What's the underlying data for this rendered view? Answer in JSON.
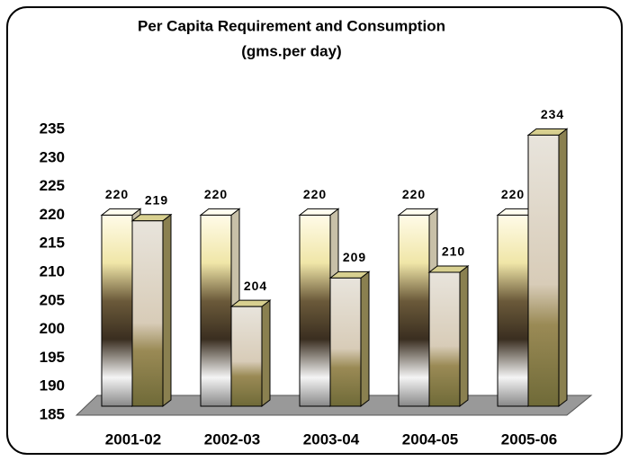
{
  "chart_data": {
    "type": "bar3d",
    "title": "Per Capita Requirement and Consumption",
    "subtitle": "(gms.per day)",
    "categories": [
      "2001-02",
      "2002-03",
      "2003-04",
      "2004-05",
      "2005-06"
    ],
    "series": [
      {
        "color": "#f4ecc0",
        "values": [
          220,
          220,
          220,
          220,
          220
        ]
      },
      {
        "color": "#b7a86a",
        "values": [
          219,
          204,
          209,
          210,
          234
        ]
      }
    ],
    "ylim": [
      185,
      235
    ],
    "yticks": [
      185,
      190,
      195,
      200,
      205,
      210,
      215,
      220,
      225,
      230,
      235
    ]
  }
}
